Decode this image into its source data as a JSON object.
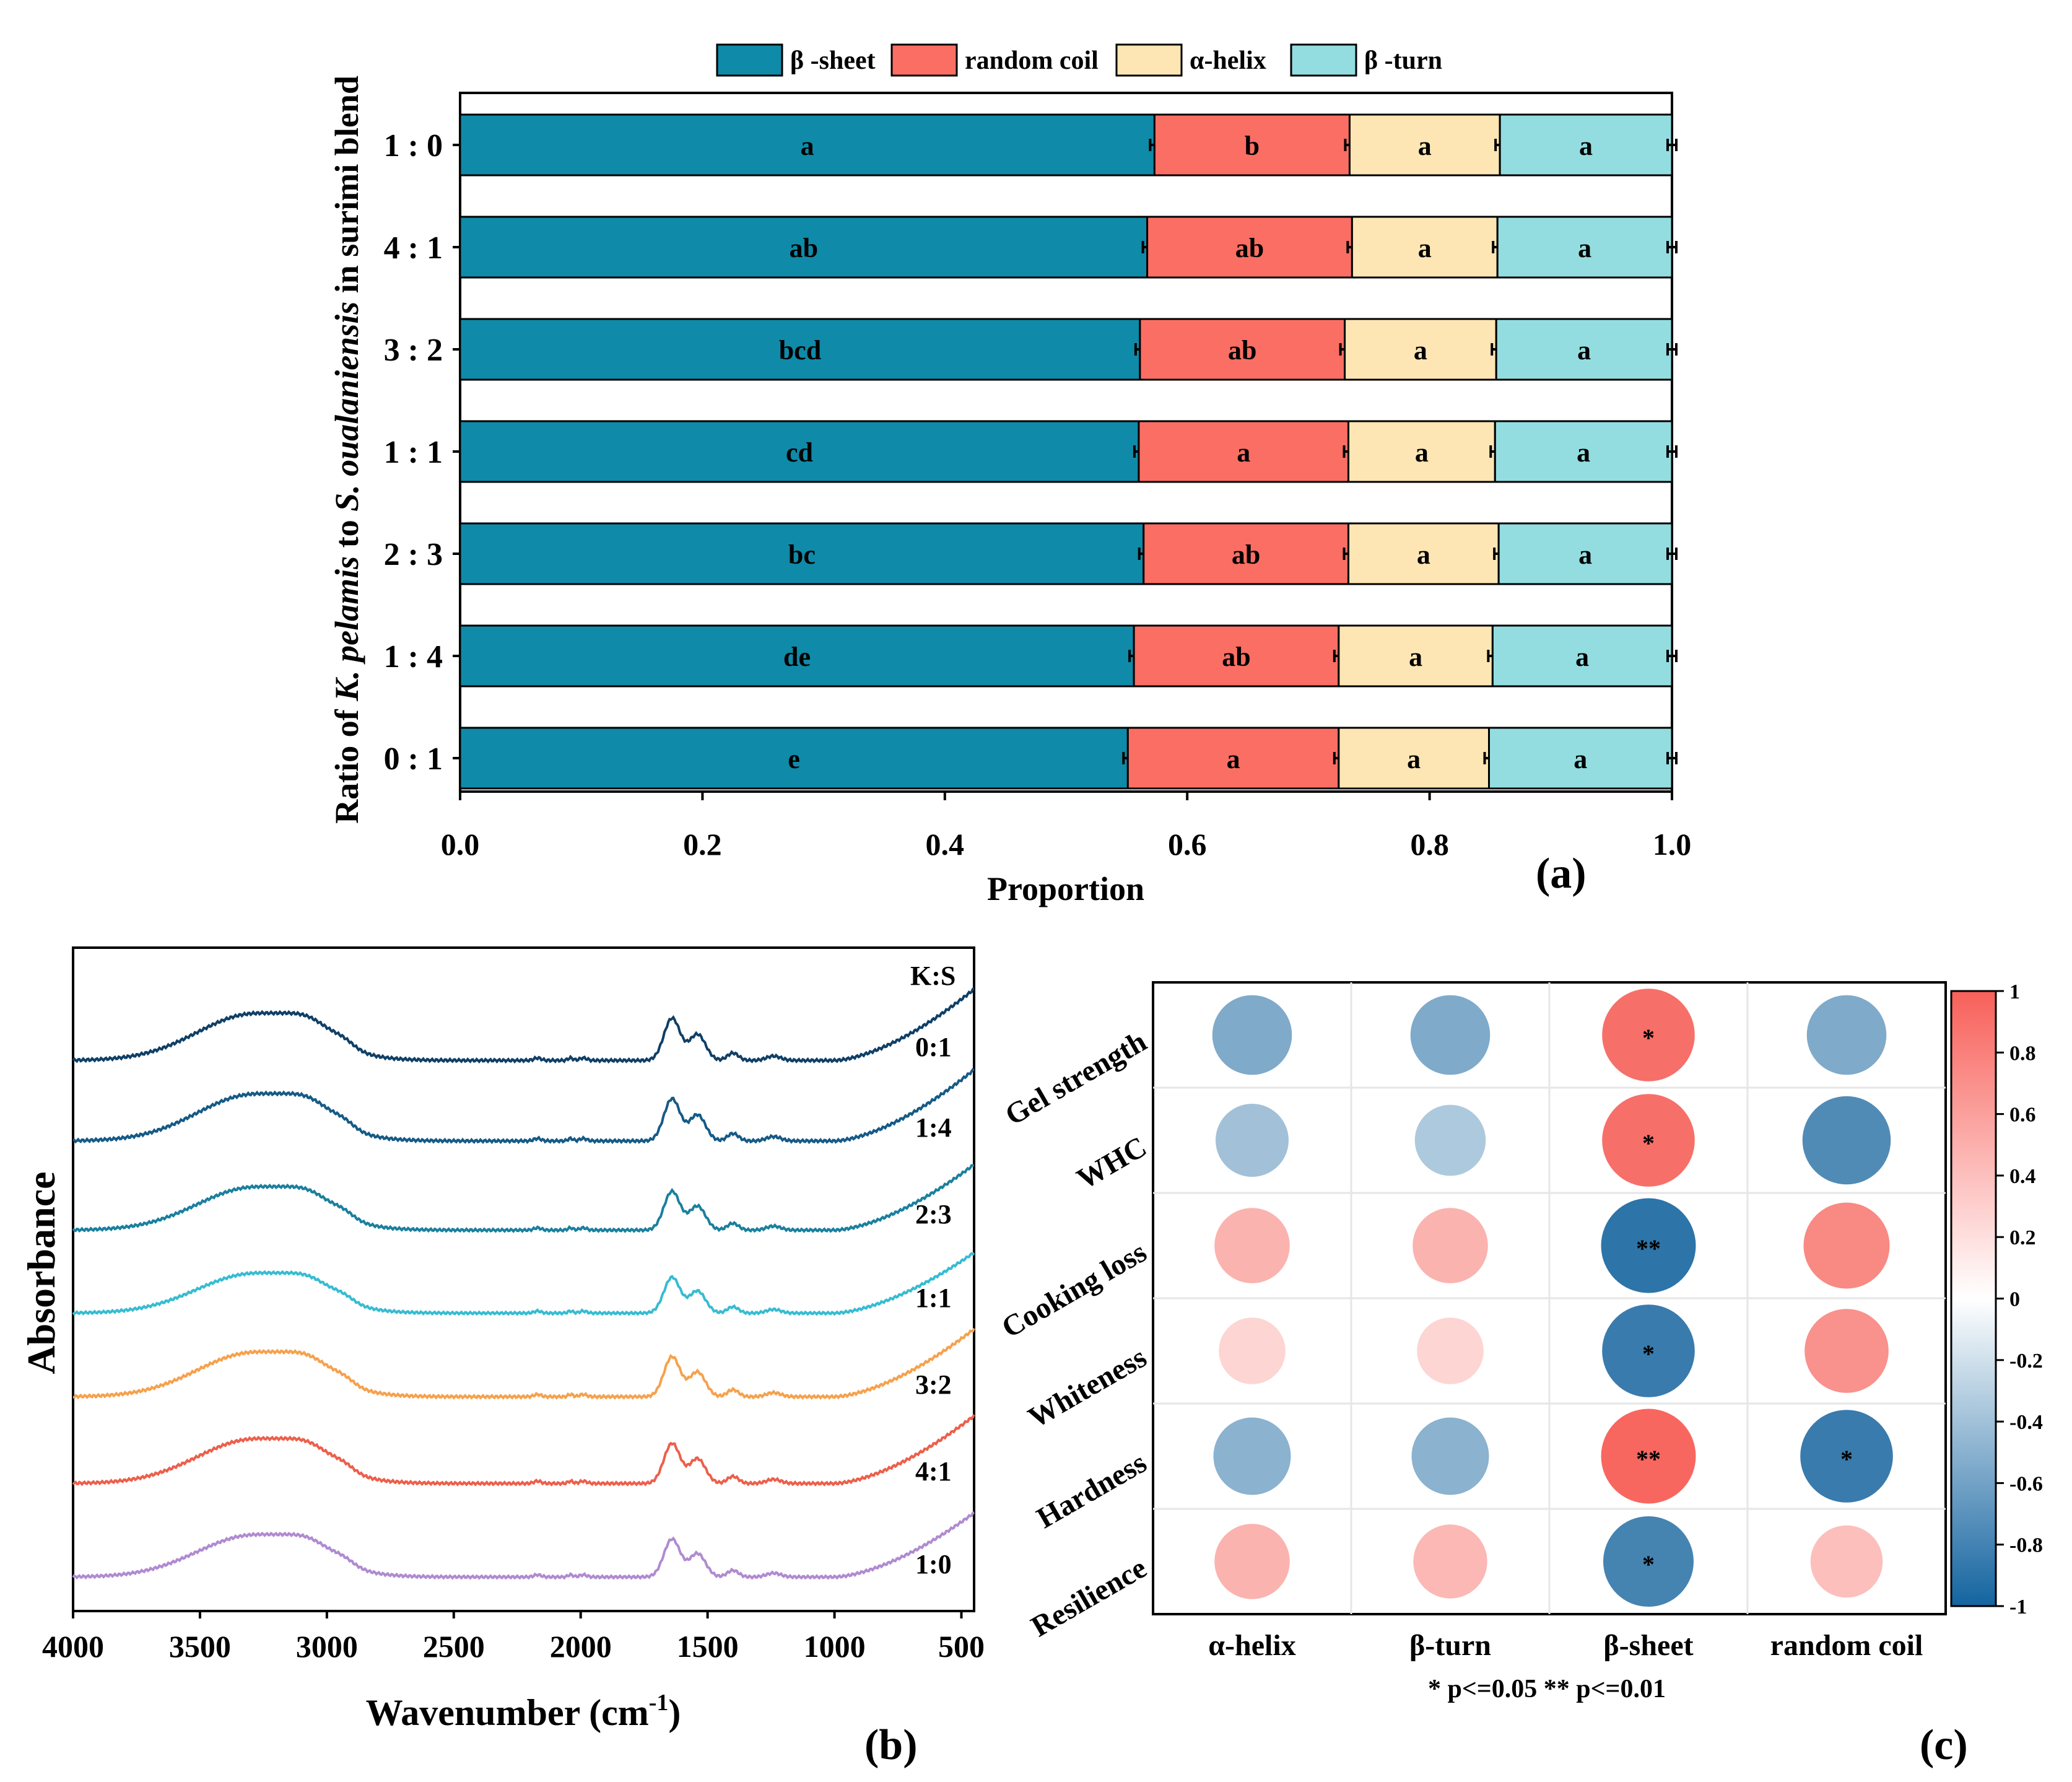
{
  "figure_labels": {
    "a": "(a)",
    "b": "(b)",
    "c": "(c)"
  },
  "colors": {
    "beta_sheet": "#0f8aa8",
    "random_coil": "#fb6e63",
    "alpha_helix": "#fde6b4",
    "beta_turn": "#93dde0",
    "ftir": [
      "#0f3f66",
      "#155a86",
      "#1a7f9e",
      "#36bcd1",
      "#f6a14c",
      "#ec5f4b",
      "#b08ad1"
    ]
  },
  "chart_data": [
    {
      "type": "bar",
      "orientation": "horizontal-stacked",
      "title": "",
      "xlabel": "Proportion",
      "ylabel_parts": [
        "Ratio of ",
        "K. pelamis",
        " to ",
        "S. oualaniensis",
        " in surimi blend"
      ],
      "xlim": [
        0,
        1
      ],
      "xticks": [
        "0.0",
        "0.2",
        "0.4",
        "0.6",
        "0.8",
        "1.0"
      ],
      "categories": [
        "1 : 0",
        "4 : 1",
        "3 : 2",
        "1 : 1",
        "2 : 3",
        "1 : 4",
        "0 : 1"
      ],
      "legend": {
        "items": [
          "β -sheet",
          "random coil",
          "α-helix",
          "β -turn"
        ],
        "position": "top"
      },
      "series": [
        {
          "name": "β-sheet",
          "values": [
            0.573,
            0.567,
            0.561,
            0.56,
            0.564,
            0.556,
            0.551
          ],
          "letters": [
            "a",
            "ab",
            "bcd",
            "cd",
            "bc",
            "de",
            "e"
          ]
        },
        {
          "name": "random coil",
          "values": [
            0.161,
            0.169,
            0.169,
            0.173,
            0.169,
            0.169,
            0.174
          ],
          "letters": [
            "b",
            "ab",
            "ab",
            "a",
            "ab",
            "ab",
            "a"
          ]
        },
        {
          "name": "α-helix",
          "values": [
            0.124,
            0.12,
            0.125,
            0.121,
            0.124,
            0.127,
            0.124
          ],
          "letters": [
            "a",
            "a",
            "a",
            "a",
            "a",
            "a",
            "a"
          ]
        },
        {
          "name": "β-turn",
          "values": [
            0.142,
            0.144,
            0.145,
            0.146,
            0.143,
            0.148,
            0.151
          ],
          "letters": [
            "a",
            "a",
            "a",
            "a",
            "a",
            "a",
            "a"
          ]
        }
      ]
    },
    {
      "type": "line",
      "title": "",
      "xlabel": "Wavenumber (cm",
      "xlabel_sup": "-1",
      "xlabel_end": ")",
      "ylabel": "Absorbance",
      "xlim": [
        4000,
        450
      ],
      "xticks": [
        4000,
        3500,
        3000,
        2500,
        2000,
        1500,
        1000,
        500
      ],
      "legend_title": "K:S",
      "series": [
        {
          "name": "0:1"
        },
        {
          "name": "1:4"
        },
        {
          "name": "2:3"
        },
        {
          "name": "1:1"
        },
        {
          "name": "3:2"
        },
        {
          "name": "4:1"
        },
        {
          "name": "1:0"
        }
      ],
      "peaks_cm": [
        3280,
        1640,
        1540,
        1400,
        1240
      ]
    },
    {
      "type": "heatmap",
      "title": "",
      "rows": [
        "Gel strength",
        "WHC",
        "Cooking loss",
        "Whiteness",
        "Hardness",
        "Resilience"
      ],
      "cols": [
        "α-helix",
        "β-turn",
        "β-sheet",
        "random coil"
      ],
      "values": [
        [
          -0.55,
          -0.55,
          0.85,
          -0.55
        ],
        [
          -0.4,
          -0.35,
          0.85,
          -0.75
        ],
        [
          0.45,
          0.45,
          -0.9,
          0.7
        ],
        [
          0.25,
          0.25,
          -0.85,
          0.65
        ],
        [
          -0.5,
          -0.5,
          0.9,
          -0.85
        ],
        [
          0.45,
          0.42,
          -0.8,
          0.38
        ]
      ],
      "stars": [
        [
          "",
          "",
          "*",
          ""
        ],
        [
          "",
          "",
          "*",
          ""
        ],
        [
          "",
          "",
          "**",
          ""
        ],
        [
          "",
          "",
          "*",
          ""
        ],
        [
          "",
          "",
          "**",
          "*"
        ],
        [
          "",
          "",
          "*",
          ""
        ]
      ],
      "colorbar_ticks": [
        "1",
        "0.8",
        "0.6",
        "0.4",
        "0.2",
        "0",
        "-0.2",
        "-0.4",
        "-0.6",
        "-0.8",
        "-1"
      ],
      "significance_note": "* p<=0.05  ** p<=0.01"
    }
  ]
}
